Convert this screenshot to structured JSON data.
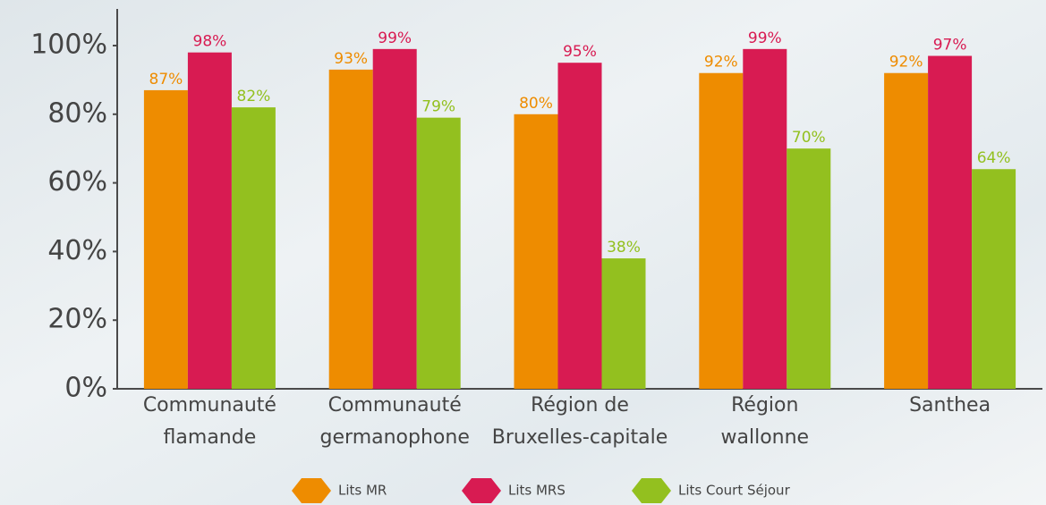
{
  "chart_data": {
    "type": "bar",
    "categories": [
      [
        "Communauté",
        "flamande"
      ],
      [
        "Communauté",
        "germanophone"
      ],
      [
        "Région de",
        "Bruxelles-capitale"
      ],
      [
        "Région",
        "wallonne"
      ],
      [
        "Santhea"
      ]
    ],
    "series": [
      {
        "name": "Lits MR",
        "color": "#ee8c00",
        "values": [
          87,
          93,
          80,
          92,
          92
        ],
        "value_labels": [
          "87%",
          "93%",
          "80%",
          "92%",
          "92%"
        ]
      },
      {
        "name": "Lits MRS",
        "color": "#d81b52",
        "values": [
          98,
          99,
          95,
          99,
          97
        ],
        "value_labels": [
          "98%",
          "99%",
          "95%",
          "99%",
          "97%"
        ]
      },
      {
        "name": "Lits Court Séjour",
        "color": "#93c01f",
        "values": [
          82,
          79,
          38,
          70,
          64
        ],
        "value_labels": [
          "82%",
          "79%",
          "38%",
          "70%",
          "64%"
        ]
      }
    ],
    "ylim": [
      0,
      110
    ],
    "yticks": [
      {
        "value": 0,
        "label": "0%"
      },
      {
        "value": 20,
        "label": "20%"
      },
      {
        "value": 40,
        "label": "40%"
      },
      {
        "value": 60,
        "label": "60%"
      },
      {
        "value": 80,
        "label": "80%"
      },
      {
        "value": 100,
        "label": "100%"
      }
    ],
    "legend": "bottom"
  }
}
